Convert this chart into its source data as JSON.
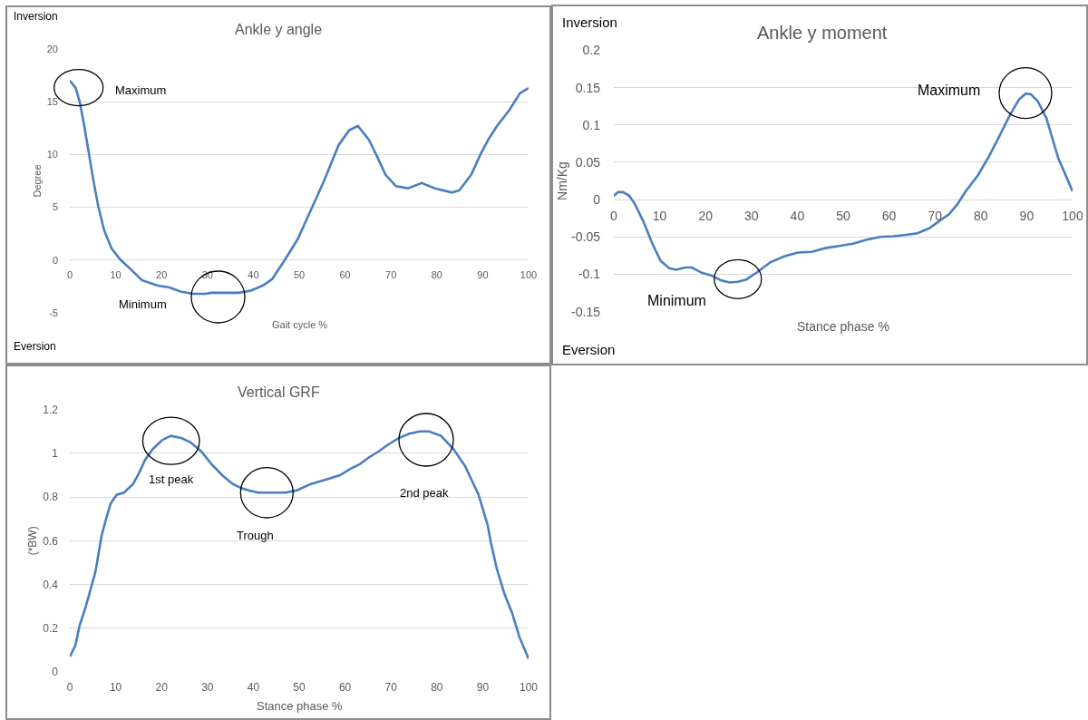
{
  "chart_data": [
    {
      "type": "line",
      "title": "Ankle y angle",
      "xlabel": "Gait cycle %",
      "ylabel": "Degree",
      "grid": "y",
      "marker": "none",
      "line_style": "solid",
      "x": [
        0,
        1.3,
        2.2,
        3.2,
        4.2,
        5.2,
        6.2,
        7.5,
        9.1,
        11.1,
        13.1,
        15.7,
        19,
        21.7,
        24.3,
        26.9,
        29.6,
        30.9,
        36.8,
        39.5,
        42.1,
        44.1,
        46.7,
        49.7,
        52.6,
        55.3,
        58.6,
        60.9,
        62.8,
        65.2,
        67.1,
        68.8,
        71.1,
        73.7,
        76.7,
        79.6,
        83.3,
        84.9,
        87.5,
        89.5,
        91.2,
        93.1,
        95.8,
        98.1,
        100
      ],
      "series": [
        {
          "color": "#4a7ec1",
          "values": [
            17.0,
            16.3,
            14.9,
            12.6,
            10.0,
            7.4,
            5.1,
            2.8,
            1.1,
            0,
            -0.8,
            -1.9,
            -2.4,
            -2.6,
            -3.0,
            -3.2,
            -3.2,
            -3.1,
            -3.1,
            -2.9,
            -2.4,
            -1.8,
            -0.1,
            2.0,
            4.8,
            7.4,
            10.9,
            12.3,
            12.7,
            11.4,
            9.7,
            8.1,
            7.0,
            6.8,
            7.3,
            6.8,
            6.4,
            6.6,
            8.1,
            10.0,
            11.4,
            12.7,
            14.2,
            15.8,
            16.3
          ]
        }
      ],
      "xlim": [
        0,
        100
      ],
      "ylim": [
        -5,
        20
      ],
      "xticks": [
        0,
        10,
        20,
        30,
        40,
        50,
        60,
        70,
        80,
        90,
        100
      ],
      "yticks": [
        -5,
        0,
        5,
        10,
        15,
        20
      ],
      "annotations": [
        "Inversion",
        "Eversion",
        "Maximum",
        "Minimum"
      ]
    },
    {
      "type": "line",
      "title": "Ankle y moment",
      "xlabel": "Stance phase %",
      "ylabel": "Nm/Kg",
      "grid": "y",
      "marker": "none",
      "line_style": "solid",
      "x": [
        0,
        0.9,
        2,
        3.4,
        4.6,
        6.5,
        8.4,
        10.2,
        12.1,
        13.6,
        15.5,
        17,
        19.2,
        21.4,
        23.3,
        25.2,
        27,
        28.9,
        31.1,
        34.1,
        37.1,
        40.1,
        43.1,
        46.1,
        49.1,
        52.1,
        55,
        58,
        61,
        64,
        66.2,
        68.9,
        71.1,
        73,
        74.8,
        76.7,
        79.3,
        81.6,
        83.8,
        86.4,
        88.3,
        89.8,
        90.9,
        92.4,
        94.3,
        96.9,
        98.4,
        100
      ],
      "series": [
        {
          "color": "#4a7ec1",
          "values": [
            0.005,
            0.01,
            0.01,
            0.005,
            -0.006,
            -0.03,
            -0.059,
            -0.082,
            -0.092,
            -0.094,
            -0.091,
            -0.091,
            -0.098,
            -0.102,
            -0.108,
            -0.111,
            -0.11,
            -0.107,
            -0.098,
            -0.084,
            -0.076,
            -0.071,
            -0.07,
            -0.065,
            -0.062,
            -0.059,
            -0.054,
            -0.05,
            -0.049,
            -0.047,
            -0.045,
            -0.038,
            -0.028,
            -0.02,
            -0.007,
            0.011,
            0.032,
            0.056,
            0.082,
            0.114,
            0.134,
            0.142,
            0.141,
            0.132,
            0.109,
            0.055,
            0.034,
            0.011
          ]
        }
      ],
      "xlim": [
        0,
        100
      ],
      "ylim": [
        -0.15,
        0.2
      ],
      "xticks": [
        0,
        10,
        20,
        30,
        40,
        50,
        60,
        70,
        80,
        90,
        100
      ],
      "yticks": [
        -0.15,
        -0.1,
        -0.05,
        0,
        0.05,
        0.1,
        0.15,
        0.2
      ],
      "annotations": [
        "Inversion",
        "Eversion",
        "Maximum",
        "Minimum"
      ]
    },
    {
      "type": "line",
      "title": "Vertical GRF",
      "xlabel": "Stance phase %",
      "ylabel": "(*BW)",
      "grid": "y",
      "marker": "none",
      "line_style": "solid",
      "x": [
        0,
        1.2,
        2.1,
        3.2,
        4.3,
        5.6,
        6.9,
        7.9,
        8.9,
        10.2,
        11.8,
        13.8,
        15.1,
        16.4,
        18.1,
        20.1,
        22,
        24.3,
        26.3,
        28.6,
        30.9,
        33.2,
        35.5,
        37.5,
        39.1,
        41.1,
        42.8,
        44.4,
        47,
        49.4,
        52.6,
        55.9,
        58.9,
        61.2,
        63.2,
        65.1,
        67.4,
        69.4,
        71.7,
        74,
        76.3,
        78.3,
        80.9,
        83.6,
        86.2,
        89.1,
        91.1,
        91.8,
        93.1,
        94.7,
        96.4,
        98,
        100
      ],
      "series": [
        {
          "color": "#4a7ec1",
          "values": [
            0.07,
            0.12,
            0.21,
            0.28,
            0.36,
            0.46,
            0.62,
            0.7,
            0.77,
            0.81,
            0.82,
            0.86,
            0.91,
            0.97,
            1.02,
            1.06,
            1.08,
            1.07,
            1.05,
            1.01,
            0.95,
            0.9,
            0.86,
            0.84,
            0.83,
            0.82,
            0.82,
            0.82,
            0.82,
            0.83,
            0.86,
            0.88,
            0.9,
            0.93,
            0.95,
            0.98,
            1.01,
            1.04,
            1.07,
            1.09,
            1.1,
            1.1,
            1.08,
            1.02,
            0.94,
            0.81,
            0.67,
            0.59,
            0.47,
            0.36,
            0.27,
            0.16,
            0.06
          ]
        }
      ],
      "xlim": [
        0,
        100
      ],
      "ylim": [
        0,
        1.2
      ],
      "xticks": [
        0,
        10,
        20,
        30,
        40,
        50,
        60,
        70,
        80,
        90,
        100
      ],
      "yticks": [
        0,
        0.2,
        0.4,
        0.6,
        0.8,
        1,
        1.2
      ],
      "annotations": [
        "1st peak",
        "Trough",
        "2nd peak"
      ]
    }
  ]
}
